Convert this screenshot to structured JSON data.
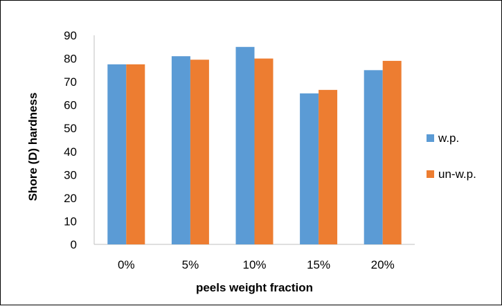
{
  "chart_data": {
    "type": "bar",
    "categories": [
      "0%",
      "5%",
      "10%",
      "15%",
      "20%"
    ],
    "series": [
      {
        "name": "w.p.",
        "color": "#5B9BD5",
        "values": [
          77.5,
          81,
          85,
          65,
          75
        ]
      },
      {
        "name": "un-w.p.",
        "color": "#ED7D31",
        "values": [
          77.5,
          79.5,
          80,
          66.5,
          79
        ]
      }
    ],
    "xlabel": "peels weight fraction",
    "ylabel": "Shore  (D) hardness",
    "ylim": [
      0,
      90
    ],
    "yticks": [
      0,
      10,
      20,
      30,
      40,
      50,
      60,
      70,
      80,
      90
    ],
    "grid": false,
    "legend_position": "right"
  }
}
